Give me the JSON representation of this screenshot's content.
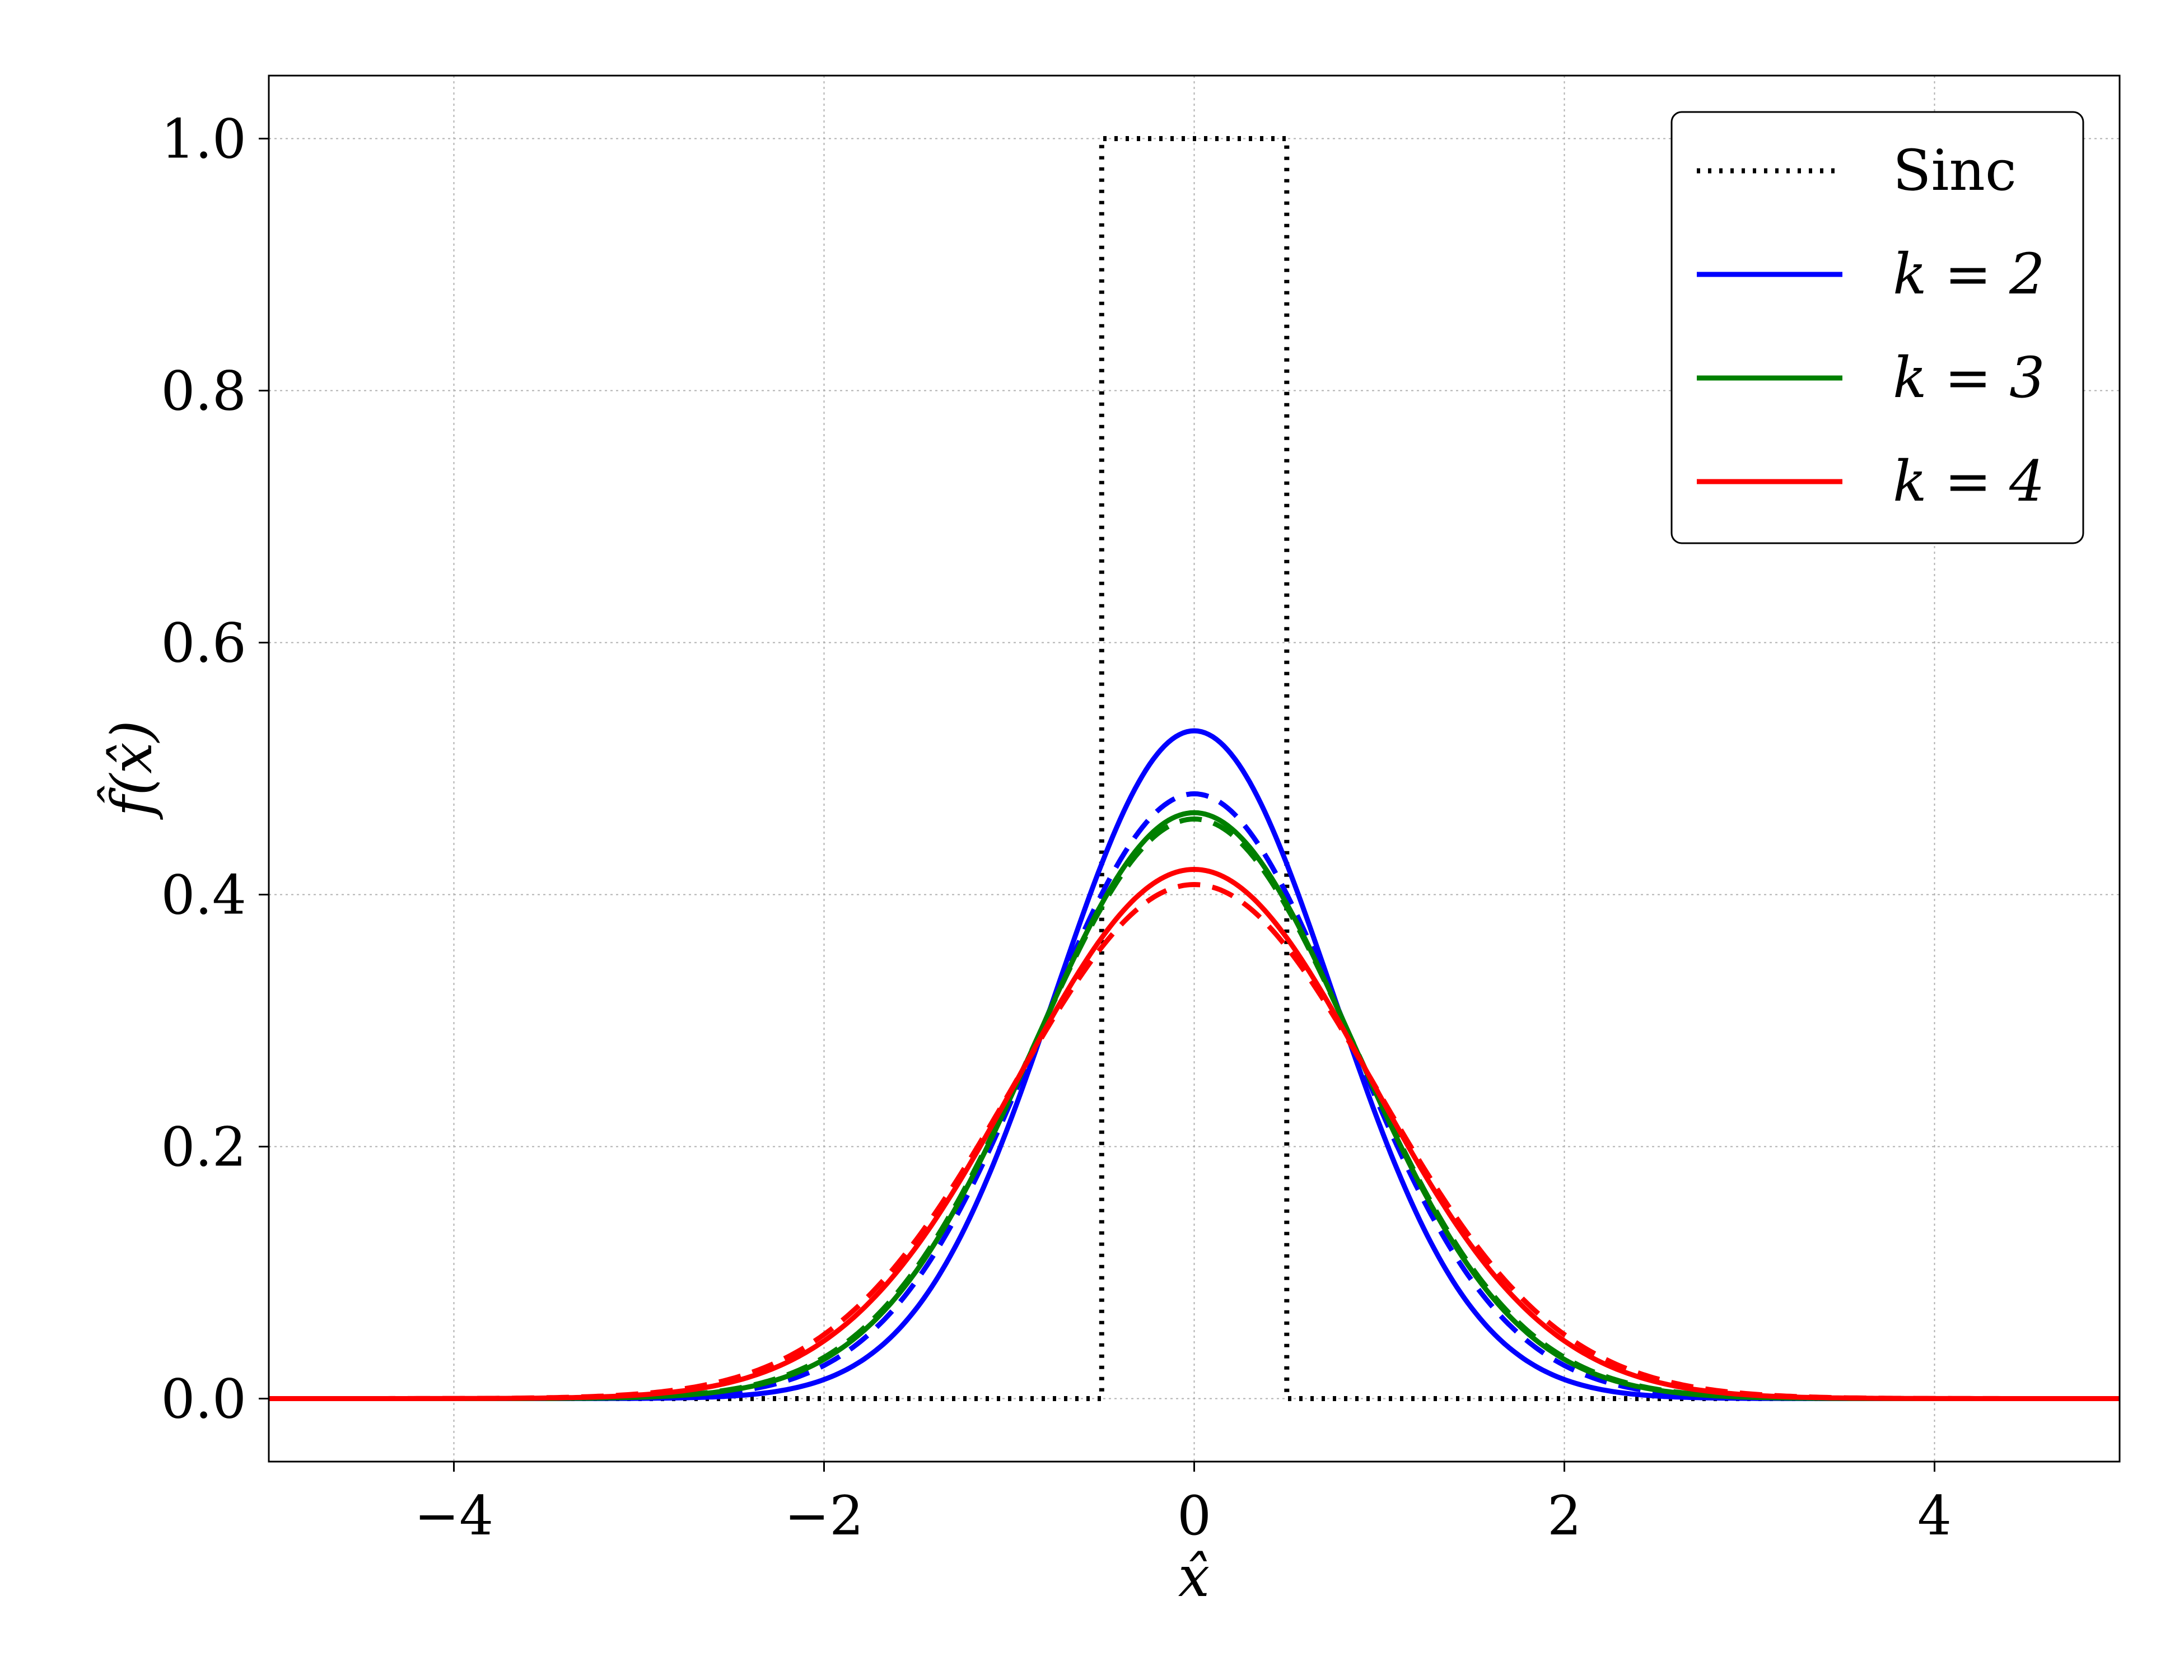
{
  "chart_data": {
    "type": "line",
    "xlabel": "x̂",
    "ylabel": "f̂(x̂)",
    "xlim": [
      -5,
      5
    ],
    "ylim": [
      -0.05,
      1.05
    ],
    "xticks": [
      -4,
      -2,
      0,
      2,
      4
    ],
    "xtick_labels": [
      "−4",
      "−2",
      "0",
      "2",
      "4"
    ],
    "yticks": [
      0.0,
      0.2,
      0.4,
      0.6,
      0.8,
      1.0
    ],
    "ytick_labels": [
      "0.0",
      "0.2",
      "0.4",
      "0.6",
      "0.8",
      "1.0"
    ],
    "grid": true,
    "legend_position": "top-right",
    "legend": [
      {
        "label": "Sinc",
        "color": "#000000",
        "style": "dotted"
      },
      {
        "label": "k = 2",
        "color": "#0000ff",
        "style": "solid"
      },
      {
        "label": "k = 3",
        "color": "#008000",
        "style": "solid"
      },
      {
        "label": "k = 4",
        "color": "#ff0000",
        "style": "solid"
      }
    ],
    "series": [
      {
        "name": "Sinc",
        "color": "#000000",
        "style": "dotted",
        "x": [
          -5,
          -0.5,
          -0.5,
          0.5,
          0.5,
          5
        ],
        "y": [
          0,
          0,
          1,
          1,
          0,
          0
        ]
      },
      {
        "name": "k = 2",
        "color": "#0000ff",
        "style": "solid",
        "peak": 0.53,
        "sigma": 0.75
      },
      {
        "color": "#0000ff",
        "style": "dashed",
        "peak": 0.48,
        "sigma": 0.83
      },
      {
        "name": "k = 3",
        "color": "#008000",
        "style": "solid",
        "peak": 0.465,
        "sigma": 0.86
      },
      {
        "color": "#008000",
        "style": "dashed",
        "peak": 0.46,
        "sigma": 0.87
      },
      {
        "name": "k = 4",
        "color": "#ff0000",
        "style": "solid",
        "peak": 0.42,
        "sigma": 0.95
      },
      {
        "color": "#ff0000",
        "style": "dashed",
        "peak": 0.408,
        "sigma": 0.98
      }
    ]
  }
}
